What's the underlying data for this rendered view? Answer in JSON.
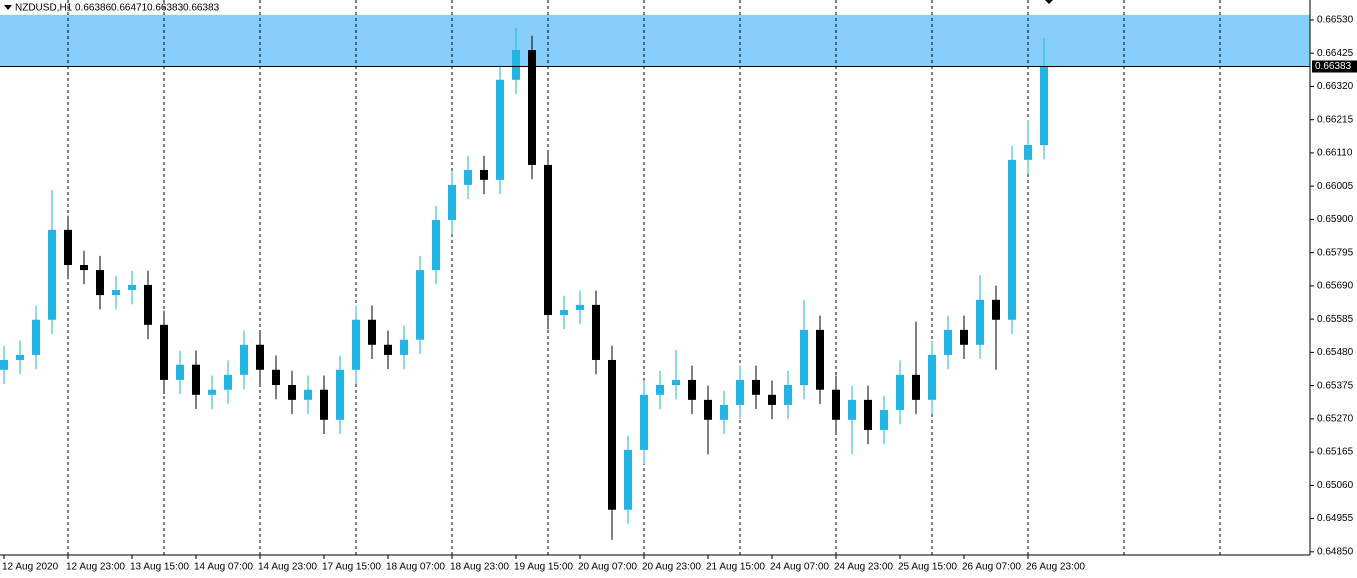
{
  "chart_data": {
    "type": "candlestick",
    "title": "NZDUSD,H1",
    "header_values": [
      "0.66386",
      "0.66471",
      "0.66383",
      "0.66383"
    ],
    "bull_color": "#22b5e2",
    "bear_color": "#000000",
    "zone_color": "#87cefa",
    "zone": [
      0.66383,
      0.66546
    ],
    "current_price": {
      "value": 0.66383,
      "label": "0.66383"
    },
    "ylim": [
      0.6484,
      0.66593
    ],
    "yticks": [
      {
        "value": 0.6653,
        "label": "0.66530"
      },
      {
        "value": 0.66425,
        "label": "0.66425"
      },
      {
        "value": 0.6632,
        "label": "0.66320"
      },
      {
        "value": 0.66215,
        "label": "0.66215"
      },
      {
        "value": 0.6611,
        "label": "0.66110"
      },
      {
        "value": 0.66005,
        "label": "0.66005"
      },
      {
        "value": 0.659,
        "label": "0.65900"
      },
      {
        "value": 0.65795,
        "label": "0.65795"
      },
      {
        "value": 0.6569,
        "label": "0.65690"
      },
      {
        "value": 0.65585,
        "label": "0.65585"
      },
      {
        "value": 0.6548,
        "label": "0.65480"
      },
      {
        "value": 0.65375,
        "label": "0.65375"
      },
      {
        "value": 0.6527,
        "label": "0.65270"
      },
      {
        "value": 0.65165,
        "label": "0.65165"
      },
      {
        "value": 0.6506,
        "label": "0.65060"
      },
      {
        "value": 0.64955,
        "label": "0.64955"
      },
      {
        "value": 0.6485,
        "label": "0.64850"
      }
    ],
    "x_labels": [
      "12 Aug 2020",
      "12 Aug 23:00",
      "13 Aug 15:00",
      "14 Aug 07:00",
      "14 Aug 23:00",
      "17 Aug 15:00",
      "18 Aug 07:00",
      "18 Aug 23:00",
      "19 Aug 15:00",
      "20 Aug 07:00",
      "20 Aug 23:00",
      "21 Aug 15:00",
      "24 Aug 07:00",
      "24 Aug 23:00",
      "25 Aug 15:00",
      "26 Aug 07:00",
      "26 Aug 23:00"
    ],
    "open": [
      0.65425,
      0.65456,
      0.65472,
      0.65583,
      0.65867,
      0.65756,
      0.6574,
      0.65661,
      0.65677,
      0.65693,
      0.65567,
      0.65393,
      0.65441,
      0.65346,
      0.65362,
      0.65409,
      0.65504,
      0.65425,
      0.65377,
      0.6533,
      0.65362,
      0.65267,
      0.65425,
      0.65583,
      0.65504,
      0.65472,
      0.6552,
      0.6574,
      0.65898,
      0.66009,
      0.66056,
      0.66025,
      0.66341,
      0.66435,
      0.66072,
      0.65598,
      0.65614,
      0.6563,
      0.65456,
      0.64983,
      0.65172,
      0.65346,
      0.65377,
      0.65393,
      0.6533,
      0.65267,
      0.65314,
      0.65393,
      0.65346,
      0.65314,
      0.65377,
      0.65551,
      0.65362,
      0.65267,
      0.6533,
      0.65235,
      0.65298,
      0.65409,
      0.6533,
      0.65472,
      0.65551,
      0.65504,
      0.65646,
      0.65583,
      0.66088,
      0.66135
    ],
    "high": [
      0.65501,
      0.65517,
      0.65628,
      0.65993,
      0.65912,
      0.65801,
      0.65785,
      0.65722,
      0.65738,
      0.65738,
      0.65612,
      0.65486,
      0.65486,
      0.65407,
      0.65454,
      0.65549,
      0.65549,
      0.6547,
      0.65422,
      0.65407,
      0.65407,
      0.6547,
      0.65628,
      0.65628,
      0.65549,
      0.65565,
      0.65785,
      0.65943,
      0.66054,
      0.66101,
      0.66101,
      0.66386,
      0.66505,
      0.6648,
      0.66117,
      0.65659,
      0.65675,
      0.65675,
      0.65501,
      0.65217,
      0.65391,
      0.65422,
      0.65488,
      0.65438,
      0.65375,
      0.65359,
      0.65438,
      0.65438,
      0.65391,
      0.65422,
      0.65646,
      0.65596,
      0.65407,
      0.65375,
      0.65375,
      0.65343,
      0.65454,
      0.65577,
      0.65517,
      0.65596,
      0.65596,
      0.65724,
      0.65691,
      0.66133,
      0.66214,
      0.66473
    ],
    "low": [
      0.6538,
      0.65411,
      0.65427,
      0.65538,
      0.65711,
      0.65695,
      0.65616,
      0.65616,
      0.65632,
      0.65522,
      0.65348,
      0.65348,
      0.65301,
      0.65301,
      0.65317,
      0.65364,
      0.6538,
      0.65332,
      0.65285,
      0.65285,
      0.65222,
      0.65222,
      0.6538,
      0.65459,
      0.65427,
      0.65427,
      0.65475,
      0.65695,
      0.65853,
      0.65964,
      0.6598,
      0.6598,
      0.66296,
      0.66027,
      0.65553,
      0.65553,
      0.65569,
      0.65411,
      0.64888,
      0.64938,
      0.65127,
      0.65301,
      0.65332,
      0.65285,
      0.65158,
      0.65222,
      0.65269,
      0.65301,
      0.65269,
      0.65269,
      0.65332,
      0.65317,
      0.65222,
      0.65158,
      0.6519,
      0.6519,
      0.65253,
      0.65285,
      0.65285,
      0.65427,
      0.65459,
      0.65459,
      0.65425,
      0.65538,
      0.66043,
      0.6609
    ],
    "close": [
      0.65456,
      0.65472,
      0.65583,
      0.65867,
      0.65756,
      0.6574,
      0.65661,
      0.65677,
      0.65693,
      0.65567,
      0.65393,
      0.65441,
      0.65346,
      0.65362,
      0.65409,
      0.65504,
      0.65425,
      0.65377,
      0.6533,
      0.65362,
      0.65267,
      0.65425,
      0.65583,
      0.65504,
      0.65472,
      0.6552,
      0.6574,
      0.65898,
      0.66009,
      0.66056,
      0.66025,
      0.66341,
      0.66435,
      0.66072,
      0.65598,
      0.65614,
      0.6563,
      0.65456,
      0.64983,
      0.65172,
      0.65346,
      0.65377,
      0.65393,
      0.6533,
      0.65267,
      0.65314,
      0.65393,
      0.65346,
      0.65314,
      0.65377,
      0.65551,
      0.65362,
      0.65267,
      0.6533,
      0.65235,
      0.65298,
      0.65409,
      0.6533,
      0.65472,
      0.65551,
      0.65504,
      0.65646,
      0.65583,
      0.66088,
      0.66135,
      0.66383
    ]
  }
}
